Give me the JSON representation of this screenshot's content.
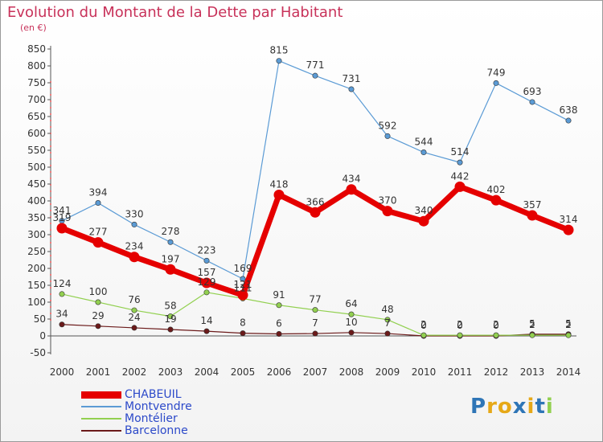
{
  "chart_data": {
    "type": "line",
    "title": "Evolution du Montant de la Dette par Habitant",
    "subtitle": "(en €)",
    "xlabel": "",
    "ylabel": "",
    "x": [
      "2000",
      "2001",
      "2002",
      "2003",
      "2004",
      "2005",
      "2006",
      "2007",
      "2008",
      "2009",
      "2010",
      "2011",
      "2012",
      "2013",
      "2014"
    ],
    "ylim": [
      -50,
      850
    ],
    "yticks": [
      "850",
      "800",
      "750",
      "700",
      "650",
      "600",
      "550",
      "500",
      "450",
      "400",
      "350",
      "300",
      "250",
      "200",
      "150",
      "100",
      "50",
      "0",
      "-50"
    ],
    "grid": false,
    "legend_position": "bottom-left",
    "series": [
      {
        "name": "CHABEUIL",
        "color": "#e50000",
        "values": [
          319,
          277,
          234,
          197,
          157,
          121,
          418,
          366,
          434,
          370,
          340,
          442,
          402,
          357,
          314
        ]
      },
      {
        "name": "Montvendre",
        "color": "#5b9bd5",
        "values": [
          341,
          394,
          330,
          278,
          223,
          169,
          815,
          771,
          731,
          592,
          544,
          514,
          749,
          693,
          638
        ]
      },
      {
        "name": "Montélier",
        "color": "#92d050",
        "values": [
          124,
          100,
          76,
          58,
          129,
          111,
          91,
          77,
          64,
          48,
          2,
          2,
          2,
          2,
          2
        ]
      },
      {
        "name": "Barcelonne",
        "color": "#6b1a1a",
        "values": [
          34,
          29,
          24,
          19,
          14,
          8,
          6,
          7,
          10,
          7,
          0,
          0,
          0,
          5,
          5
        ]
      }
    ]
  },
  "logo": {
    "text": "Proxiti",
    "letter_colors": [
      "#2e75b6",
      "#e6a817",
      "#e6a817",
      "#2e75b6",
      "#e6a817",
      "#2e75b6",
      "#92d050"
    ]
  }
}
